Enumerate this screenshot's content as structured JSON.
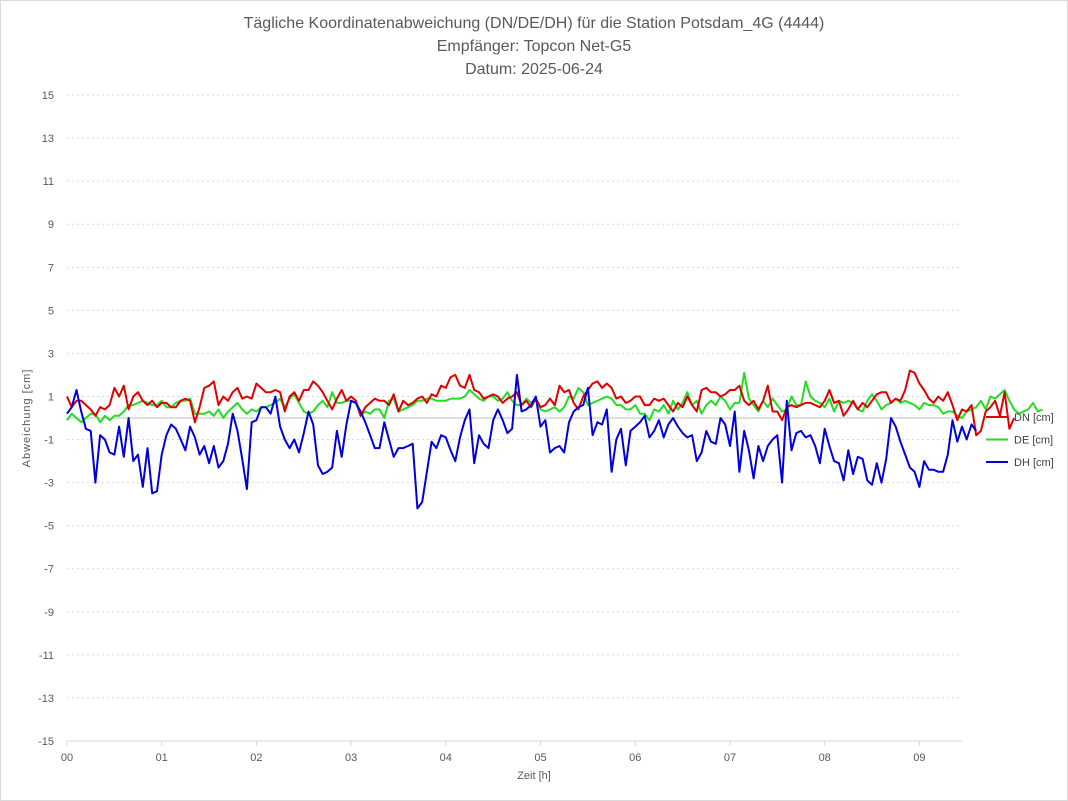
{
  "chart_data": {
    "type": "line",
    "title": "Tägliche Koordinatenabweichung (DN/DE/DH) für die Station Potsdam_4G (4444)",
    "subtitle": "Empfänger: Topcon Net-G5",
    "date_line": "Datum: 2025-06-24",
    "xlabel": "Zeit [h]",
    "ylabel": "Abweichung [cm]",
    "xlim": [
      0,
      9.45
    ],
    "ylim": [
      -15,
      15
    ],
    "x_ticks": [
      0,
      1,
      2,
      3,
      4,
      5,
      6,
      7,
      8,
      9
    ],
    "x_tick_labels": [
      "00",
      "01",
      "02",
      "03",
      "04",
      "05",
      "06",
      "07",
      "08",
      "09"
    ],
    "y_ticks": [
      15,
      13,
      11,
      9,
      7,
      5,
      3,
      1,
      -1,
      -3,
      -5,
      -7,
      -9,
      -11,
      -13,
      -15
    ],
    "y_tick_labels": [
      "15",
      "13",
      "11",
      "9",
      "7",
      "5",
      "3",
      "1",
      "-1",
      "-3",
      "-5",
      "-7",
      "-9",
      "-11",
      "-13",
      "-15"
    ],
    "grid": "horizontal dotted",
    "zero_line": true,
    "legend_position": "right",
    "x_start": 0,
    "x_step": 0.05,
    "series": [
      {
        "name": "DN [cm]",
        "color": "#e00000",
        "values": [
          1.0,
          0.5,
          0.8,
          0.8,
          0.6,
          0.4,
          0.1,
          0.5,
          0.4,
          0.6,
          1.4,
          1.0,
          1.5,
          0.4,
          1.0,
          1.2,
          0.8,
          0.6,
          0.8,
          0.5,
          0.7,
          0.7,
          0.5,
          0.5,
          0.8,
          0.9,
          0.8,
          -0.2,
          0.5,
          1.4,
          1.5,
          1.7,
          0.6,
          1.0,
          0.8,
          1.2,
          1.4,
          0.9,
          1.0,
          0.9,
          1.6,
          1.4,
          1.2,
          1.2,
          1.3,
          1.2,
          0.3,
          1.0,
          1.2,
          0.8,
          1.3,
          1.3,
          1.7,
          1.5,
          1.2,
          0.8,
          0.4,
          0.9,
          1.3,
          0.8,
          1.0,
          0.8,
          0.1,
          0.5,
          0.7,
          0.9,
          0.8,
          0.8,
          0.6,
          1.1,
          0.3,
          0.8,
          0.6,
          0.7,
          0.9,
          1.0,
          0.7,
          1.1,
          1.0,
          1.5,
          1.4,
          1.9,
          2.0,
          1.5,
          1.4,
          2.0,
          1.3,
          1.2,
          0.9,
          1.0,
          1.1,
          1.0,
          0.7,
          0.9,
          1.0,
          1.2,
          0.6,
          0.8,
          0.5,
          0.9,
          0.5,
          0.6,
          0.9,
          0.6,
          1.5,
          1.2,
          1.3,
          0.7,
          0.4,
          1.0,
          1.3,
          1.6,
          1.7,
          1.4,
          1.6,
          1.4,
          0.9,
          1.0,
          0.7,
          0.8,
          1.0,
          1.0,
          0.6,
          0.6,
          0.9,
          0.8,
          0.9,
          0.6,
          0.3,
          0.7,
          0.5,
          1.0,
          0.6,
          0.3,
          1.3,
          1.4,
          1.2,
          1.2,
          1.0,
          1.1,
          1.3,
          1.3,
          1.5,
          0.8,
          0.6,
          0.8,
          0.4,
          0.8,
          1.5,
          0.3,
          0.3,
          -0.1,
          0.5,
          0.6,
          0.5,
          0.6,
          0.7,
          0.7,
          0.6,
          0.5,
          0.8,
          1.3,
          0.7,
          0.8,
          0.1,
          0.4,
          0.8,
          0.4,
          0.7,
          0.5,
          0.8,
          1.1,
          1.2,
          1.2,
          0.7,
          0.9,
          0.8,
          1.3,
          2.2,
          2.1,
          1.6,
          1.3,
          0.9,
          0.7,
          1.0,
          0.8,
          1.2,
          0.6,
          -0.1,
          0.4,
          0.3,
          0.6,
          -0.8,
          -0.6,
          0.3,
          0.5,
          0.8,
          0.1,
          1.2,
          -0.5,
          0.0
        ]
      },
      {
        "name": "DE [cm]",
        "color": "#22dd22",
        "values": [
          -0.1,
          0.2,
          0.0,
          -0.2,
          0.0,
          0.2,
          0.2,
          -0.2,
          0.1,
          -0.1,
          0.1,
          0.1,
          0.3,
          0.6,
          0.6,
          0.7,
          0.8,
          0.7,
          0.6,
          0.6,
          0.8,
          0.5,
          0.5,
          0.7,
          0.8,
          0.8,
          0.9,
          0.2,
          0.2,
          0.2,
          0.3,
          0.1,
          0.4,
          0.0,
          0.3,
          0.5,
          0.7,
          0.4,
          0.2,
          0.4,
          0.3,
          0.5,
          0.5,
          0.6,
          0.7,
          0.9,
          0.5,
          0.9,
          1.1,
          0.7,
          0.3,
          0.2,
          0.3,
          0.6,
          0.8,
          0.5,
          1.2,
          0.7,
          0.7,
          0.8,
          0.8,
          0.7,
          0.1,
          0.3,
          0.2,
          0.4,
          0.4,
          0.0,
          0.8,
          0.9,
          0.3,
          0.4,
          0.5,
          0.6,
          0.8,
          0.8,
          0.9,
          0.9,
          0.8,
          0.8,
          0.8,
          0.9,
          0.9,
          0.9,
          1.0,
          1.3,
          1.1,
          0.9,
          0.8,
          1.0,
          1.0,
          0.8,
          0.9,
          1.2,
          0.8,
          0.6,
          0.6,
          0.9,
          0.7,
          0.9,
          0.4,
          0.3,
          0.4,
          0.5,
          0.3,
          0.5,
          1.0,
          0.9,
          1.4,
          1.2,
          0.6,
          0.7,
          0.8,
          0.9,
          1.0,
          0.9,
          0.6,
          0.6,
          0.4,
          0.4,
          0.6,
          0.2,
          0.2,
          -0.1,
          0.4,
          0.3,
          0.6,
          0.2,
          0.8,
          0.4,
          0.7,
          1.2,
          0.6,
          0.8,
          0.2,
          0.6,
          0.8,
          0.6,
          1.0,
          0.8,
          0.4,
          0.7,
          0.7,
          2.1,
          0.9,
          0.6,
          0.3,
          0.8,
          0.5,
          0.9,
          0.6,
          0.3,
          0.4,
          1.0,
          0.6,
          0.6,
          1.7,
          1.0,
          0.8,
          0.7,
          0.5,
          0.9,
          0.3,
          0.8,
          0.7,
          0.8,
          0.7,
          0.4,
          0.3,
          0.8,
          1.1,
          0.8,
          0.4,
          0.6,
          0.7,
          0.9,
          0.7,
          0.8,
          0.7,
          0.6,
          0.4,
          0.7,
          0.6,
          0.6,
          0.5,
          0.2,
          0.3,
          0.3,
          0.1,
          0.0,
          0.3,
          0.4,
          0.5,
          0.8,
          0.4,
          1.0,
          0.9,
          1.1,
          1.3,
          0.8,
          0.4,
          0.2,
          0.3,
          0.4,
          0.7,
          0.3,
          0.4
        ]
      },
      {
        "name": "DH [cm]",
        "color": "#0000dd",
        "values": [
          0.2,
          0.5,
          1.3,
          0.3,
          -0.5,
          -0.6,
          -3.0,
          -0.8,
          -1.0,
          -1.6,
          -1.7,
          -0.4,
          -1.8,
          0.0,
          -2.0,
          -1.7,
          -3.2,
          -1.4,
          -3.5,
          -3.4,
          -1.7,
          -0.8,
          -0.3,
          -0.5,
          -1.0,
          -1.5,
          -0.4,
          -0.9,
          -1.7,
          -1.3,
          -2.1,
          -1.3,
          -2.3,
          -2.0,
          -1.2,
          0.2,
          -0.6,
          -1.9,
          -3.3,
          -0.2,
          -0.1,
          0.5,
          0.5,
          0.2,
          1.0,
          -0.4,
          -1.0,
          -1.4,
          -1.0,
          -1.6,
          -0.7,
          0.3,
          -0.3,
          -2.2,
          -2.6,
          -2.5,
          -2.3,
          -0.6,
          -1.8,
          -0.3,
          0.8,
          0.7,
          0.3,
          -0.2,
          -0.8,
          -1.4,
          -1.4,
          -0.2,
          -1.0,
          -1.8,
          -1.4,
          -1.4,
          -1.3,
          -1.2,
          -4.2,
          -3.9,
          -2.5,
          -1.1,
          -1.4,
          -0.8,
          -0.9,
          -1.5,
          -2.0,
          -0.9,
          -0.1,
          0.4,
          -2.1,
          -0.8,
          -1.2,
          -1.4,
          -0.1,
          0.4,
          -0.1,
          -0.7,
          -0.5,
          2.0,
          0.3,
          0.4,
          0.6,
          1.0,
          -0.4,
          -0.1,
          -1.6,
          -1.4,
          -1.3,
          -1.6,
          -0.2,
          0.3,
          0.5,
          0.6,
          1.4,
          -0.8,
          -0.2,
          -0.3,
          0.4,
          -2.5,
          -1.0,
          -0.5,
          -2.2,
          -0.6,
          -0.4,
          -0.2,
          0.1,
          -0.9,
          -0.6,
          -0.1,
          -0.9,
          -0.3,
          0.0,
          -0.4,
          -0.7,
          -0.9,
          -0.8,
          -2.0,
          -1.6,
          -0.6,
          -1.1,
          -1.2,
          0.0,
          -0.3,
          -1.3,
          0.3,
          -2.5,
          -0.6,
          -1.5,
          -2.8,
          -1.3,
          -2.0,
          -1.3,
          -1.0,
          -0.8,
          -3.0,
          0.8,
          -1.5,
          -0.7,
          -0.6,
          -0.9,
          -0.8,
          -1.3,
          -2.1,
          -0.5,
          -1.3,
          -2.0,
          -2.1,
          -2.9,
          -1.5,
          -2.6,
          -1.8,
          -1.9,
          -2.9,
          -3.1,
          -2.1,
          -3.0,
          -1.9,
          0.0,
          -0.4,
          -1.1,
          -1.7,
          -2.3,
          -2.5,
          -3.2,
          -2.0,
          -2.4,
          -2.4,
          -2.5,
          -2.5,
          -1.7,
          -0.1,
          -1.1,
          -0.4,
          -1.0,
          -0.3,
          -0.6
        ]
      }
    ]
  }
}
